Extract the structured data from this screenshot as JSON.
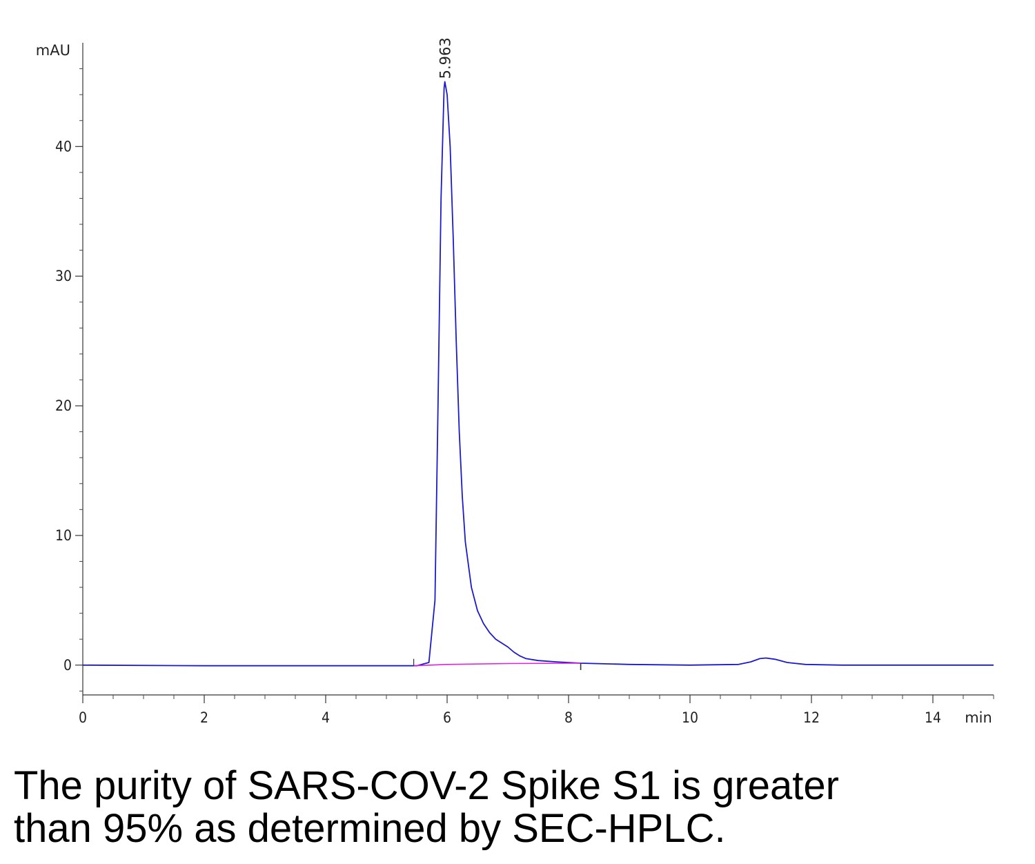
{
  "chart_data": {
    "type": "line",
    "ylabel": "mAU",
    "xlabel": "min",
    "xlim": [
      0,
      15
    ],
    "ylim": [
      -2.3,
      48
    ],
    "x_ticks": [
      0,
      2,
      4,
      6,
      8,
      10,
      12,
      14
    ],
    "y_ticks": [
      0,
      10,
      20,
      30,
      40
    ],
    "grid": false,
    "series": [
      {
        "color": "#1a1acc",
        "points": [
          [
            0,
            0
          ],
          [
            2,
            -0.05
          ],
          [
            4,
            -0.05
          ],
          [
            5.5,
            -0.05
          ],
          [
            5.7,
            0.2
          ],
          [
            5.8,
            5
          ],
          [
            5.85,
            20
          ],
          [
            5.9,
            36
          ],
          [
            5.95,
            44.5
          ],
          [
            5.963,
            45
          ],
          [
            6.0,
            44
          ],
          [
            6.05,
            40
          ],
          [
            6.1,
            33
          ],
          [
            6.15,
            25
          ],
          [
            6.2,
            18
          ],
          [
            6.25,
            13
          ],
          [
            6.3,
            9.5
          ],
          [
            6.4,
            6
          ],
          [
            6.5,
            4.2
          ],
          [
            6.6,
            3.2
          ],
          [
            6.7,
            2.5
          ],
          [
            6.8,
            2
          ],
          [
            6.9,
            1.7
          ],
          [
            7.0,
            1.4
          ],
          [
            7.1,
            1.0
          ],
          [
            7.2,
            0.7
          ],
          [
            7.3,
            0.5
          ],
          [
            7.5,
            0.35
          ],
          [
            7.8,
            0.25
          ],
          [
            8.2,
            0.15
          ],
          [
            9,
            0.05
          ],
          [
            10,
            0
          ],
          [
            10.8,
            0.05
          ],
          [
            11.0,
            0.25
          ],
          [
            11.15,
            0.5
          ],
          [
            11.25,
            0.55
          ],
          [
            11.4,
            0.45
          ],
          [
            11.6,
            0.2
          ],
          [
            11.9,
            0.05
          ],
          [
            12.5,
            0
          ],
          [
            14,
            0
          ],
          [
            15,
            0
          ]
        ]
      },
      {
        "color": "#e020e0",
        "points": [
          [
            5.45,
            -0.05
          ],
          [
            6.0,
            0.05
          ],
          [
            7.0,
            0.12
          ],
          [
            8.2,
            0.15
          ]
        ]
      }
    ],
    "annotations": [
      {
        "text": "5.963",
        "x": 5.963,
        "y": 45
      }
    ]
  },
  "caption": {
    "line1": "The purity of SARS-COV-2 Spike S1 is greater",
    "line2": "than 95% as determined by SEC-HPLC."
  }
}
